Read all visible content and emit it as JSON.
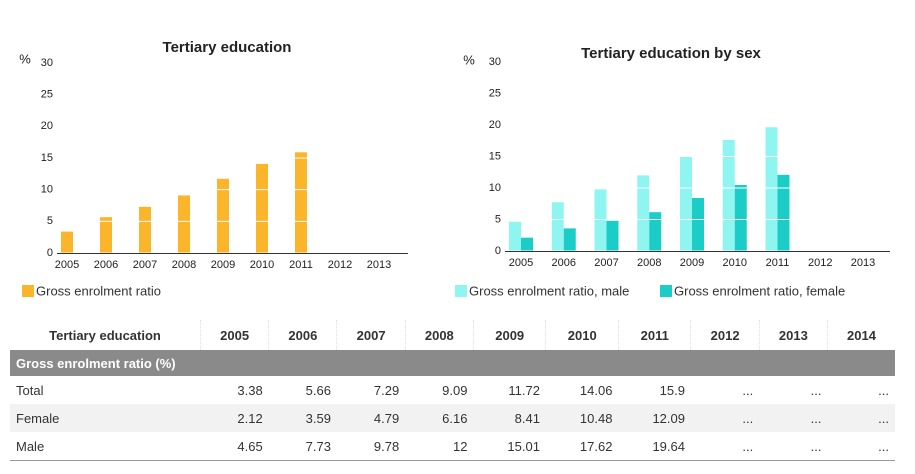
{
  "chart_data": [
    {
      "type": "bar",
      "title": "Tertiary education",
      "y_unit": "%",
      "categories": [
        "2005",
        "2006",
        "2007",
        "2008",
        "2009",
        "2010",
        "2011",
        "2012",
        "2013"
      ],
      "series": [
        {
          "name": "Gross enrolment ratio",
          "color": "#fbb52a",
          "values": [
            3.38,
            5.66,
            7.29,
            9.09,
            11.72,
            14.06,
            15.9,
            null,
            null
          ]
        }
      ],
      "ylim": [
        0,
        30
      ],
      "yticks": [
        0,
        5,
        10,
        15,
        20,
        25,
        30
      ],
      "grid": true
    },
    {
      "type": "bar",
      "title": "Tertiary education by sex",
      "y_unit": "%",
      "categories": [
        "2005",
        "2006",
        "2007",
        "2008",
        "2009",
        "2010",
        "2011",
        "2012",
        "2013"
      ],
      "series": [
        {
          "name": "Gross enrolment ratio, male",
          "color": "#8ff5f1",
          "values": [
            4.65,
            7.73,
            9.78,
            12,
            15.01,
            17.62,
            19.64,
            null,
            null
          ]
        },
        {
          "name": "Gross enrolment ratio, female",
          "color": "#1bcdc6",
          "values": [
            2.12,
            3.59,
            4.79,
            6.16,
            8.41,
            10.48,
            12.09,
            null,
            null
          ]
        }
      ],
      "ylim": [
        0,
        30
      ],
      "yticks": [
        0,
        5,
        10,
        15,
        20,
        25,
        30
      ],
      "grid": true
    }
  ],
  "table": {
    "header": [
      "Tertiary education",
      "2005",
      "2006",
      "2007",
      "2008",
      "2009",
      "2010",
      "2011",
      "2012",
      "2013",
      "2014"
    ],
    "section": "Gross enrolment ratio (%)",
    "rows": [
      [
        "Total",
        3.38,
        5.66,
        7.29,
        9.09,
        11.72,
        14.06,
        15.9,
        "...",
        "...",
        "..."
      ],
      [
        "Female",
        2.12,
        3.59,
        4.79,
        6.16,
        8.41,
        10.48,
        12.09,
        "...",
        "...",
        "..."
      ],
      [
        "Male",
        4.65,
        7.73,
        9.78,
        12,
        15.01,
        17.62,
        19.64,
        "...",
        "...",
        "..."
      ]
    ]
  }
}
